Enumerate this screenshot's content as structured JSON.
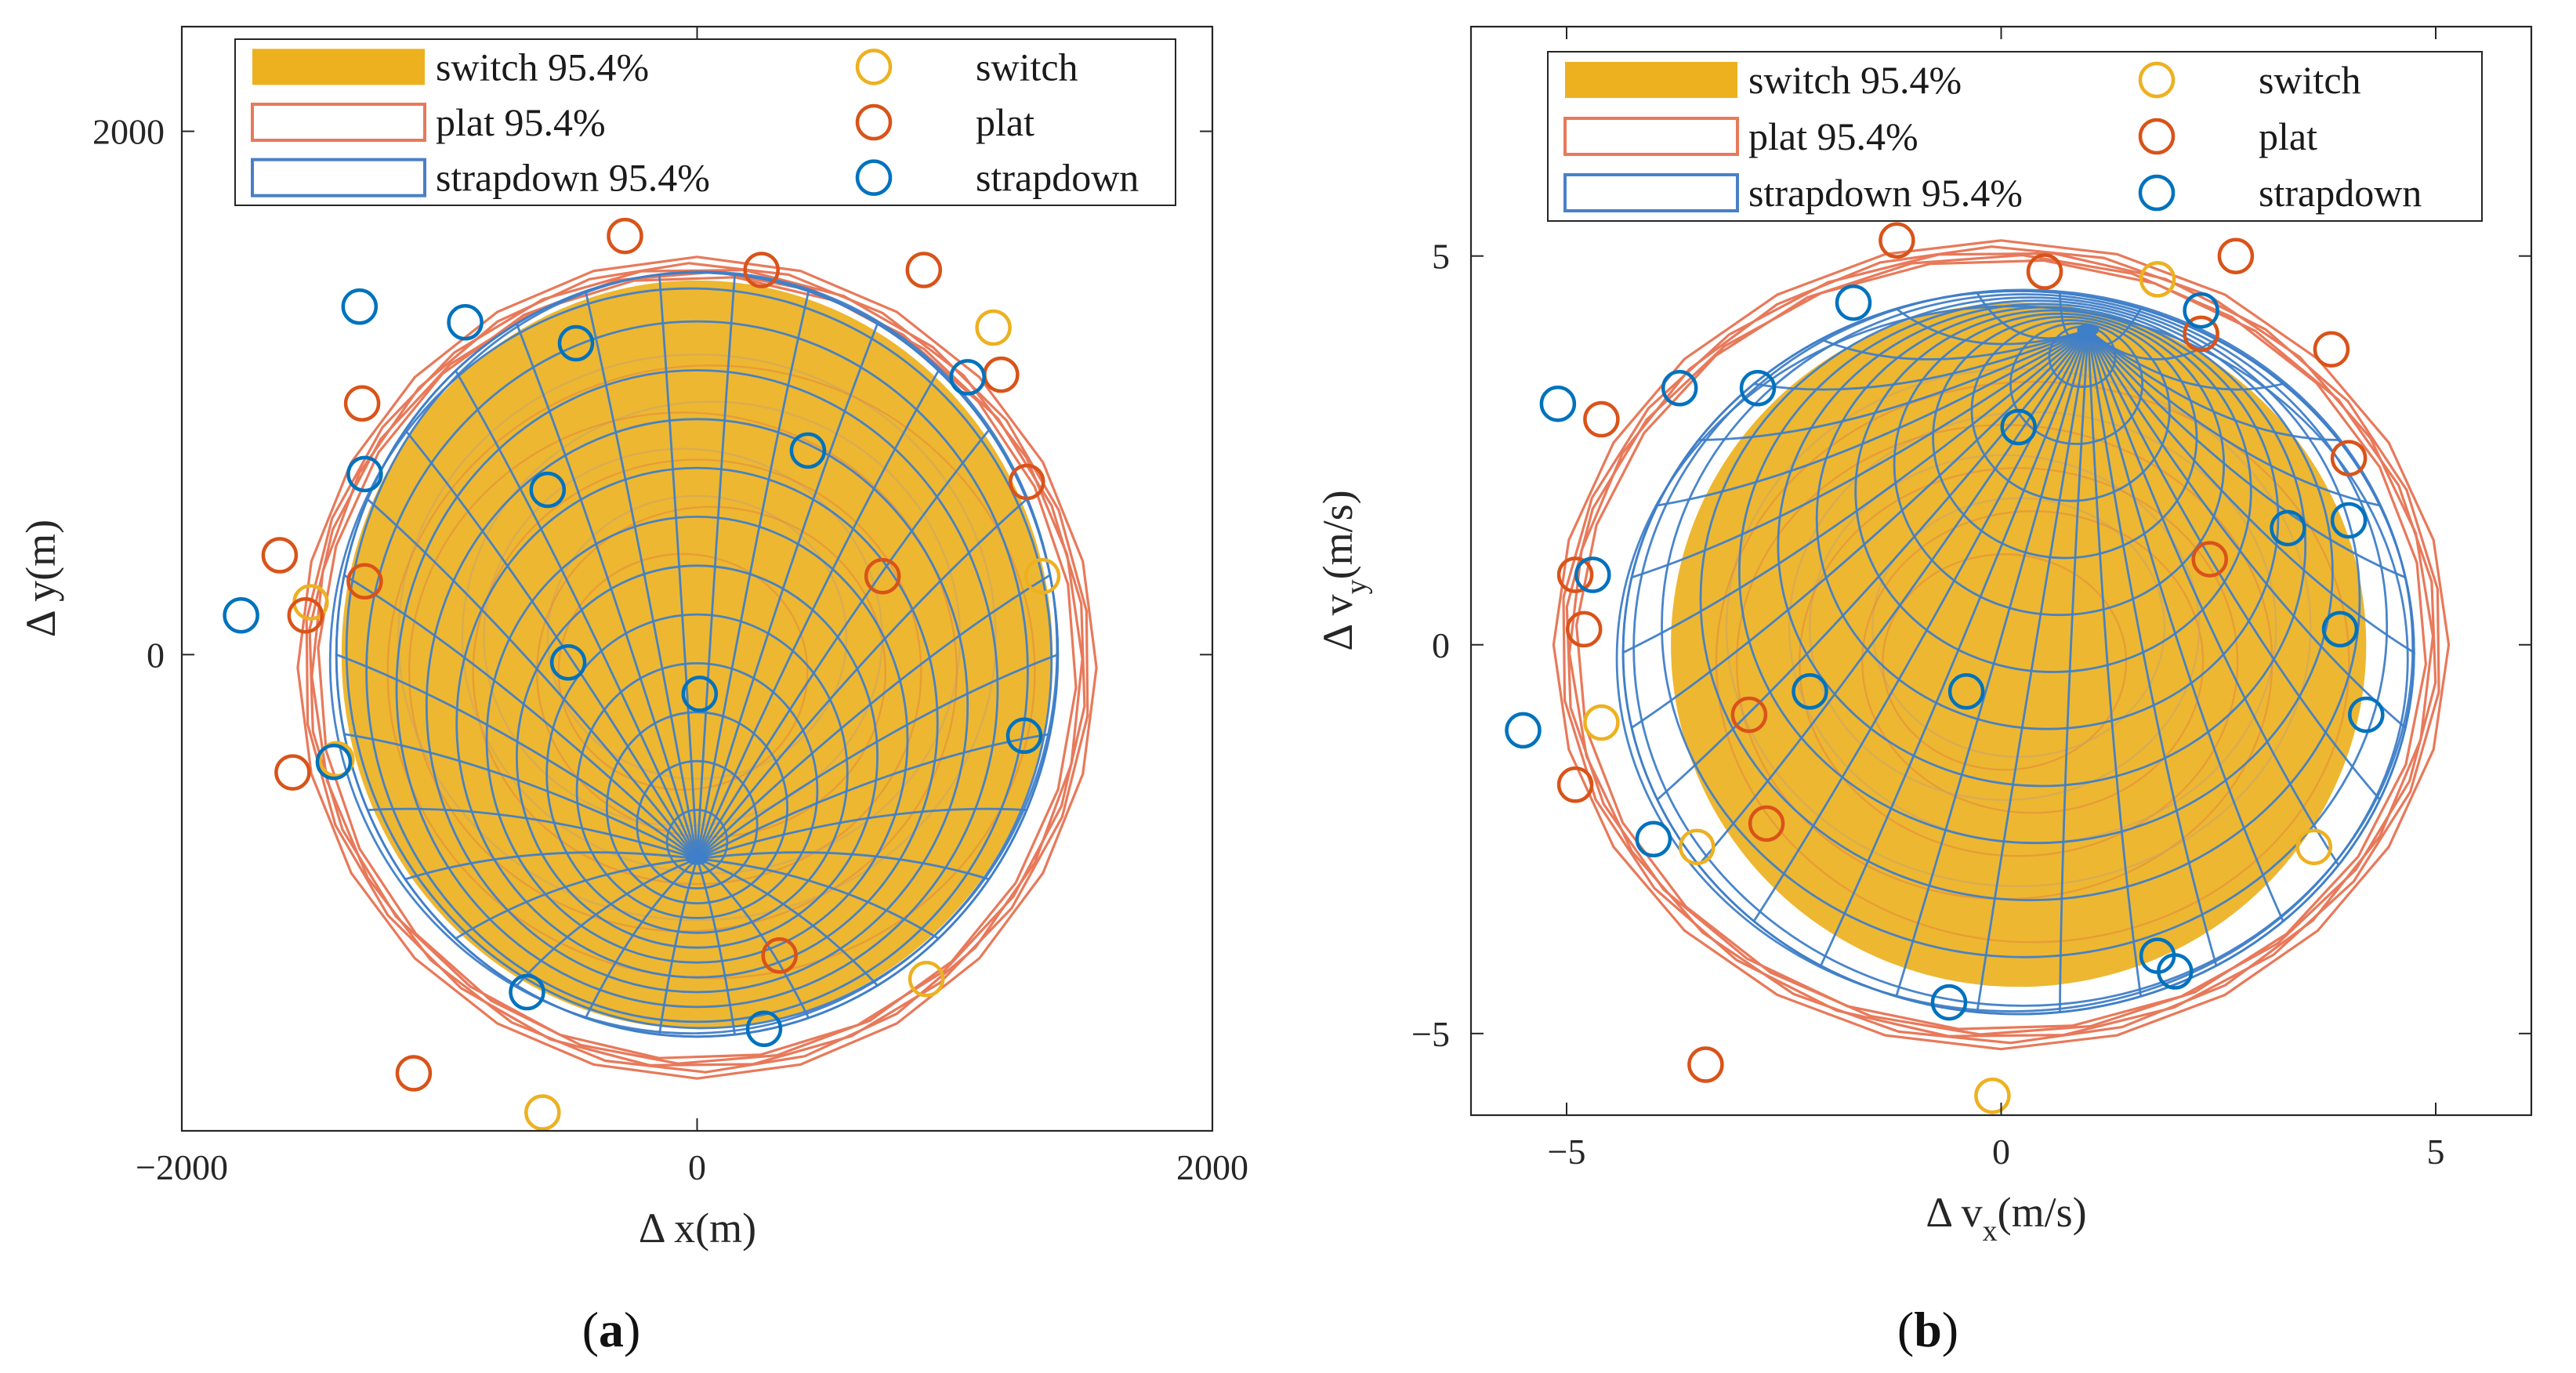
{
  "chart_data": [
    {
      "type": "scatter",
      "panel_label": "a",
      "xlabel": "Δ x(m)",
      "ylabel": "Δ y(m)",
      "xlim": [
        -2000,
        2000
      ],
      "ylim": [
        -1820,
        2400
      ],
      "xticks": [
        -2000,
        0,
        2000
      ],
      "xtick_labels": [
        "−2000",
        "0",
        "2000"
      ],
      "yticks": [
        0,
        2000
      ],
      "ytick_labels": [
        "0",
        "2000"
      ],
      "grid": false,
      "legend_position": "top",
      "legend": [
        {
          "label": "switch 95.4%",
          "kind": "filled-ellipse",
          "color": "#EDB120"
        },
        {
          "label": "plat 95.4%",
          "kind": "wire-ellipse",
          "color": "#E8795A"
        },
        {
          "label": "strapdown 95.4%",
          "kind": "wire-ellipse",
          "color": "#4A7FC7"
        },
        {
          "label": "switch",
          "kind": "circle-marker",
          "color": "#EDB120"
        },
        {
          "label": "plat",
          "kind": "circle-marker",
          "color": "#D95319"
        },
        {
          "label": "strapdown",
          "kind": "circle-marker",
          "color": "#0072BD"
        }
      ],
      "ellipses": [
        {
          "name": "switch 95.4%",
          "center": [
            0,
            0
          ],
          "semi_axes": [
            1380,
            1430
          ],
          "pole": [
            0,
            -780
          ],
          "color": "#EDB120"
        },
        {
          "name": "plat 95.4%",
          "center": [
            0,
            -50
          ],
          "semi_axes": [
            1550,
            1570
          ],
          "color": "#E8795A"
        },
        {
          "name": "strapdown 95.4%",
          "center": [
            0,
            0
          ],
          "semi_axes": [
            1400,
            1460
          ],
          "pole": [
            0,
            -780
          ],
          "color": "#3F7EC8"
        }
      ],
      "series": [
        {
          "name": "switch",
          "color": "#EDB120",
          "points": [
            [
              -600,
              -1750
            ],
            [
              890,
              -1240
            ],
            [
              1150,
              1250
            ],
            [
              -1500,
              200
            ],
            [
              1340,
              300
            ],
            [
              -1400,
              -400
            ]
          ]
        },
        {
          "name": "plat",
          "color": "#D95319",
          "points": [
            [
              -280,
              1600
            ],
            [
              250,
              1470
            ],
            [
              880,
              1470
            ],
            [
              1180,
              1070
            ],
            [
              -1300,
              960
            ],
            [
              1280,
              660
            ],
            [
              -1620,
              380
            ],
            [
              -1290,
              280
            ],
            [
              720,
              300
            ],
            [
              -1520,
              150
            ],
            [
              -1570,
              -450
            ],
            [
              320,
              -1150
            ],
            [
              -1100,
              -1600
            ]
          ]
        },
        {
          "name": "strapdown",
          "color": "#0072BD",
          "points": [
            [
              -1310,
              1330
            ],
            [
              -900,
              1270
            ],
            [
              -470,
              1190
            ],
            [
              1050,
              1060
            ],
            [
              430,
              780
            ],
            [
              -1290,
              690
            ],
            [
              -580,
              630
            ],
            [
              -1770,
              150
            ],
            [
              -500,
              -30
            ],
            [
              10,
              -150
            ],
            [
              1270,
              -310
            ],
            [
              -1410,
              -410
            ],
            [
              -660,
              -1290
            ],
            [
              260,
              -1430
            ]
          ]
        }
      ]
    },
    {
      "type": "scatter",
      "panel_label": "b",
      "xlabel_main": "Δ v",
      "xlabel_sub": "x",
      "xlabel_units": "(m/s)",
      "ylabel_main": "Δ v",
      "ylabel_sub": "y",
      "ylabel_units": "(m/s)",
      "xlim": [
        -6.1,
        6.1
      ],
      "ylim": [
        -6.05,
        7.95
      ],
      "xticks": [
        -5,
        0,
        5
      ],
      "xtick_labels": [
        "−5",
        "0",
        "5"
      ],
      "yticks": [
        -5,
        0,
        5
      ],
      "ytick_labels": [
        "−5",
        "0",
        "5"
      ],
      "grid": false,
      "legend_position": "top",
      "legend": [
        {
          "label": "switch 95.4%",
          "kind": "filled-ellipse",
          "color": "#EDB120"
        },
        {
          "label": "plat 95.4%",
          "kind": "wire-ellipse",
          "color": "#E8795A"
        },
        {
          "label": "strapdown 95.4%",
          "kind": "wire-ellipse",
          "color": "#4A7FC7"
        },
        {
          "label": "switch",
          "kind": "circle-marker",
          "color": "#EDB120"
        },
        {
          "label": "plat",
          "kind": "circle-marker",
          "color": "#D95319"
        },
        {
          "label": "strapdown",
          "kind": "circle-marker",
          "color": "#0072BD"
        }
      ],
      "ellipses": [
        {
          "name": "switch 95.4%",
          "center": [
            0.2,
            0
          ],
          "semi_axes": [
            4.0,
            4.4
          ],
          "pole": [
            1.0,
            4.05
          ],
          "color": "#EDB120"
        },
        {
          "name": "plat 95.4%",
          "center": [
            0,
            0
          ],
          "semi_axes": [
            5.15,
            5.2
          ],
          "color": "#E8795A"
        },
        {
          "name": "strapdown 95.4%",
          "center": [
            0.2,
            -0.1
          ],
          "semi_axes": [
            4.55,
            4.65
          ],
          "pole": [
            1.0,
            4.05
          ],
          "color": "#3F7EC8"
        }
      ],
      "series": [
        {
          "name": "switch",
          "color": "#EDB120",
          "points": [
            [
              1.8,
              4.7
            ],
            [
              -4.6,
              -1.0
            ],
            [
              -3.5,
              -2.6
            ],
            [
              3.6,
              -2.6
            ],
            [
              -0.1,
              -5.8
            ]
          ]
        },
        {
          "name": "plat",
          "color": "#D95319",
          "points": [
            [
              -1.2,
              5.2
            ],
            [
              2.7,
              5.0
            ],
            [
              0.5,
              4.8
            ],
            [
              2.3,
              4.0
            ],
            [
              3.8,
              3.8
            ],
            [
              -4.6,
              2.9
            ],
            [
              4.0,
              2.4
            ],
            [
              -4.9,
              0.9
            ],
            [
              2.4,
              1.1
            ],
            [
              -4.8,
              0.2
            ],
            [
              -2.9,
              -0.9
            ],
            [
              -4.9,
              -1.8
            ],
            [
              -2.7,
              -2.3
            ],
            [
              -3.4,
              -5.4
            ]
          ]
        },
        {
          "name": "strapdown",
          "color": "#0072BD",
          "points": [
            [
              2.3,
              4.3
            ],
            [
              -1.7,
              4.4
            ],
            [
              -3.7,
              3.3
            ],
            [
              -2.8,
              3.3
            ],
            [
              0.2,
              2.8
            ],
            [
              -5.1,
              3.1
            ],
            [
              3.3,
              1.5
            ],
            [
              4.0,
              1.6
            ],
            [
              -4.7,
              0.9
            ],
            [
              3.9,
              0.2
            ],
            [
              -2.2,
              -0.6
            ],
            [
              -0.4,
              -0.6
            ],
            [
              4.2,
              -0.9
            ],
            [
              -5.5,
              -1.1
            ],
            [
              -4.0,
              -2.5
            ],
            [
              1.8,
              -4.0
            ],
            [
              2.0,
              -4.2
            ],
            [
              -0.6,
              -4.6
            ]
          ]
        }
      ]
    }
  ]
}
